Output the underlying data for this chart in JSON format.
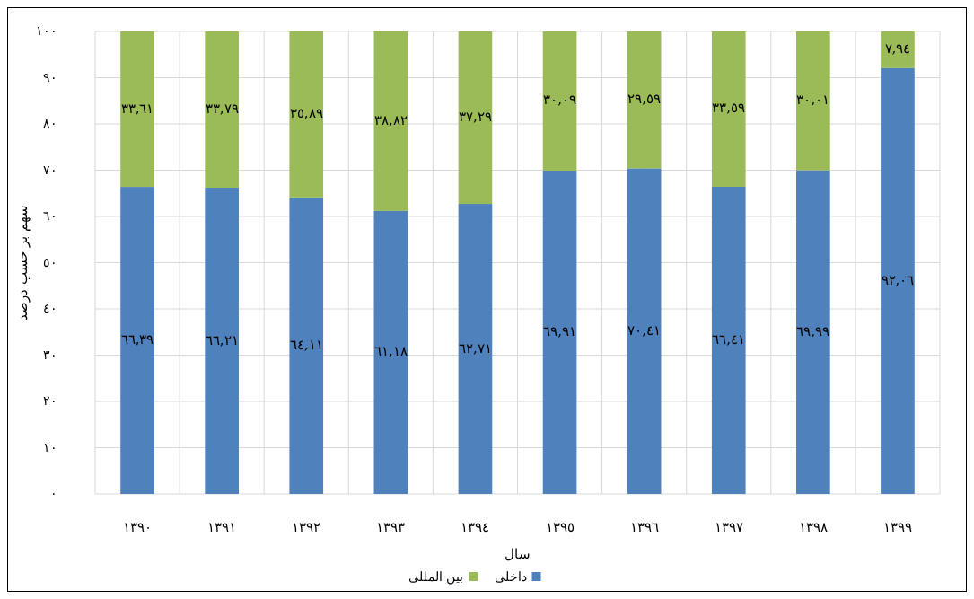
{
  "chart_data": {
    "type": "bar",
    "stacked": true,
    "xlabel": "سال",
    "ylabel": "سهم بر حسب درصد",
    "categories": [
      "١٣٩٠",
      "١٣٩١",
      "١٣٩٢",
      "١٣٩٣",
      "١٣٩٤",
      "١٣٩٥",
      "١٣٩٦",
      "١٣٩٧",
      "١٣٩٨",
      "١٣٩٩"
    ],
    "series": [
      {
        "name": "داخلی",
        "color": "#4f81bd",
        "values": [
          66.39,
          66.21,
          64.11,
          61.18,
          62.71,
          69.91,
          70.41,
          66.41,
          69.99,
          92.06
        ],
        "value_labels": [
          "٦٦,٣٩",
          "٦٦,٢١",
          "٦٤,١١",
          "٦١,١٨",
          "٦٢,٧١",
          "٦٩,٩١",
          "٧٠,٤١",
          "٦٦,٤١",
          "٦٩,٩٩",
          "٩٢,٠٦"
        ]
      },
      {
        "name": "بین المللی",
        "color": "#9bbb59",
        "values": [
          33.61,
          33.79,
          35.89,
          38.82,
          37.29,
          30.09,
          29.59,
          33.59,
          30.01,
          7.94
        ],
        "value_labels": [
          "٣٣,٦١",
          "٣٣,٧٩",
          "٣٥,٨٩",
          "٣٨,٨٢",
          "٣٧,٢٩",
          "٣٠,٠٩",
          "٢٩,٥٩",
          "٣٣,٥٩",
          "٣٠,٠١",
          "٧,٩٤"
        ]
      }
    ],
    "ylim": [
      0,
      100
    ],
    "yticks": [
      {
        "value": 0,
        "label": "٠"
      },
      {
        "value": 10,
        "label": "١٠"
      },
      {
        "value": 20,
        "label": "٢٠"
      },
      {
        "value": 30,
        "label": "٣٠"
      },
      {
        "value": 40,
        "label": "٤٠"
      },
      {
        "value": 50,
        "label": "٥٠"
      },
      {
        "value": 60,
        "label": "٦٠"
      },
      {
        "value": 70,
        "label": "٧٠"
      },
      {
        "value": 80,
        "label": "٨٠"
      },
      {
        "value": 90,
        "label": "٩٠"
      },
      {
        "value": 100,
        "label": "١٠٠"
      }
    ],
    "grid": true,
    "legend": "bottom"
  }
}
